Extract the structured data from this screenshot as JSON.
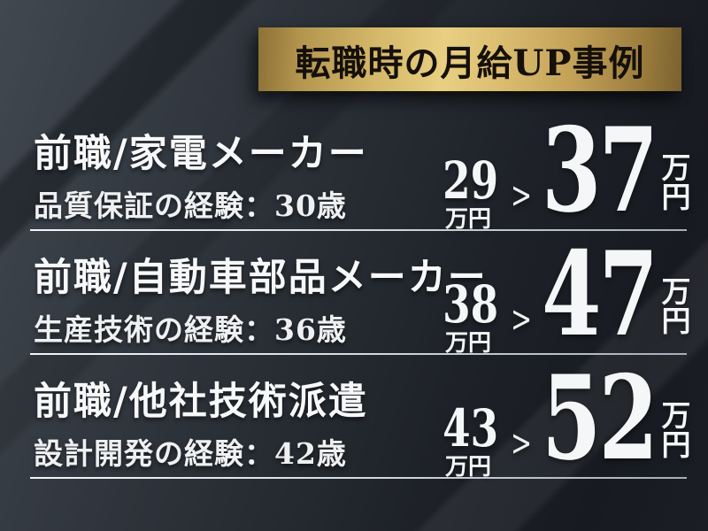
{
  "banner": {
    "title": "転職時の月給UP事例"
  },
  "arrow_glyph": ">",
  "cases": [
    {
      "title": "前職/家電メーカー",
      "subtitle": "品質保証の経験：30歳",
      "from_value": "29",
      "from_unit": "万円",
      "to_value": "37",
      "to_unit_top": "万",
      "to_unit_bottom": "円"
    },
    {
      "title": "前職/自動車部品メーカー",
      "subtitle": "生産技術の経験：36歳",
      "from_value": "38",
      "from_unit": "万円",
      "to_value": "47",
      "to_unit_top": "万",
      "to_unit_bottom": "円"
    },
    {
      "title": "前職/他社技術派遣",
      "subtitle": "設計開発の経験：42歳",
      "from_value": "43",
      "from_unit": "万円",
      "to_value": "52",
      "to_unit_top": "万",
      "to_unit_bottom": "円"
    }
  ],
  "colors": {
    "gold_bright": "#e8cf82",
    "gold_dark": "#7b612f",
    "background_light": "#414850",
    "background_dark": "#171a20",
    "text": "#f6f7f8",
    "banner_text": "#15100a"
  }
}
